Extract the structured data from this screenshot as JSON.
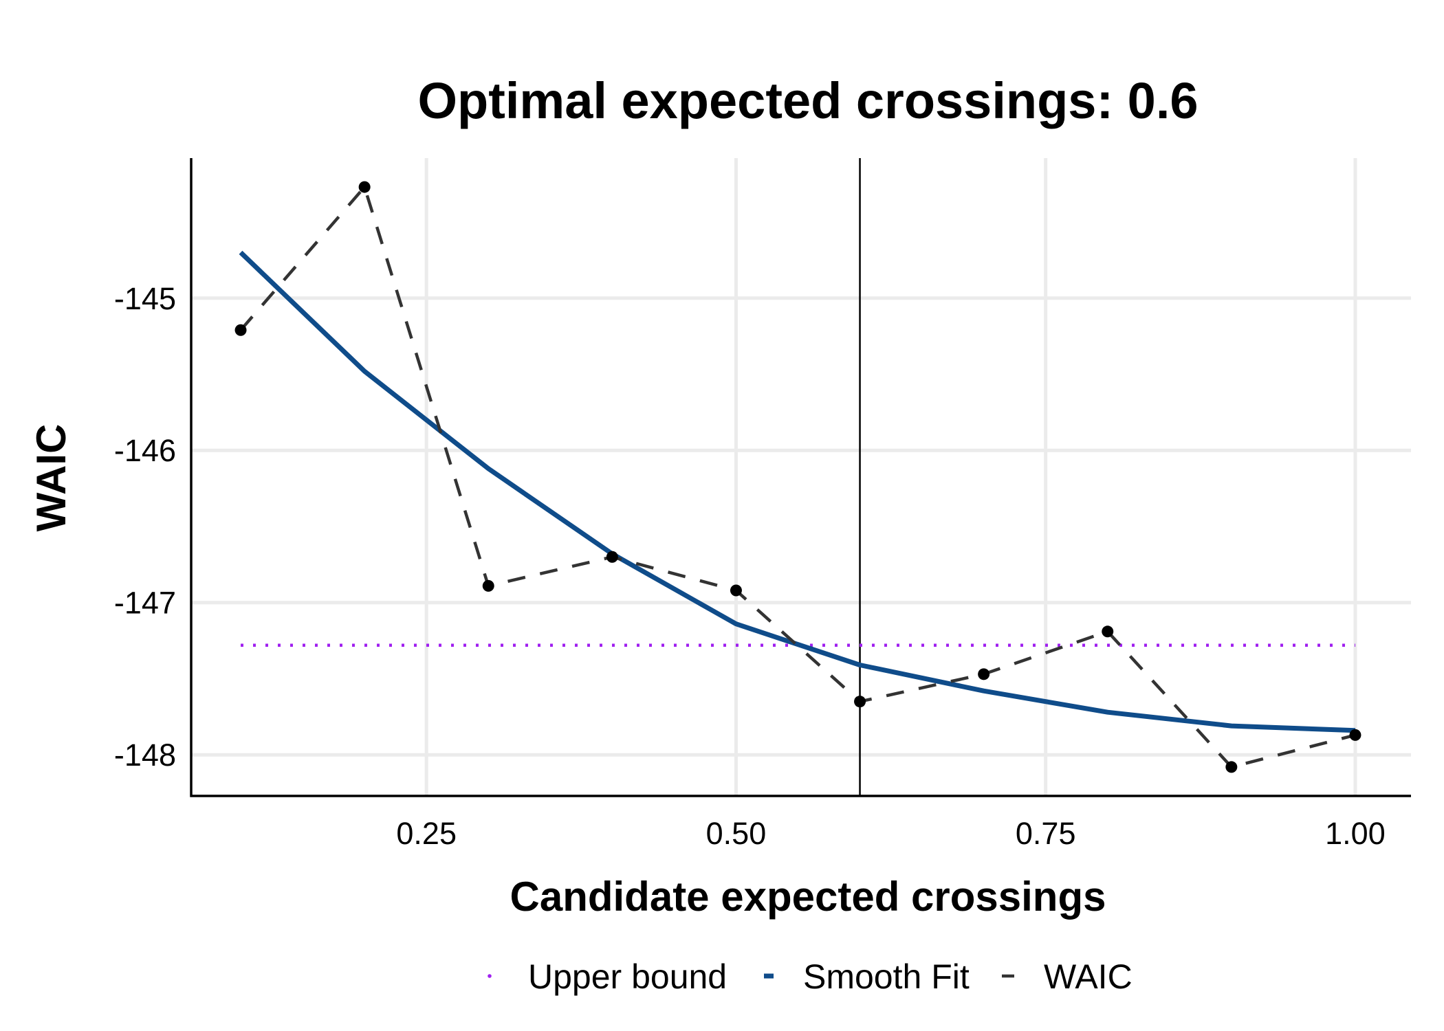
{
  "chart_data": {
    "type": "line",
    "title": "Optimal expected crossings: 0.6",
    "xlabel": "Candidate expected crossings",
    "ylabel": "WAIC",
    "xlim": [
      0.06,
      1.045
    ],
    "ylim": [
      -148.27,
      -144.08
    ],
    "x_ticks": [
      0.25,
      0.5,
      0.75,
      1.0
    ],
    "x_tick_labels": [
      "0.25",
      "0.50",
      "0.75",
      "1.00"
    ],
    "y_ticks": [
      -145,
      -146,
      -147,
      -148
    ],
    "y_tick_labels": [
      "-145",
      "-146",
      "-147",
      "-148"
    ],
    "grid": true,
    "legend_position": "bottom",
    "optimal_x": 0.6,
    "series": [
      {
        "name": "Upper bound",
        "style": "dotted",
        "color": "#A020F0",
        "x": [
          0.1,
          1.0
        ],
        "y": [
          -147.28,
          -147.28
        ]
      },
      {
        "name": "Smooth Fit",
        "style": "solid",
        "color": "#0F4C8A",
        "x": [
          0.1,
          0.2,
          0.3,
          0.4,
          0.5,
          0.6,
          0.7,
          0.8,
          0.9,
          1.0
        ],
        "y": [
          -144.7,
          -145.48,
          -146.12,
          -146.68,
          -147.14,
          -147.41,
          -147.58,
          -147.72,
          -147.81,
          -147.84
        ]
      },
      {
        "name": "WAIC",
        "style": "dashed",
        "color": "#333333",
        "points": true,
        "x": [
          0.1,
          0.2,
          0.3,
          0.4,
          0.5,
          0.6,
          0.7,
          0.8,
          0.9,
          1.0
        ],
        "y": [
          -145.21,
          -144.27,
          -146.89,
          -146.7,
          -146.92,
          -147.65,
          -147.47,
          -147.19,
          -148.08,
          -147.87
        ]
      }
    ]
  }
}
